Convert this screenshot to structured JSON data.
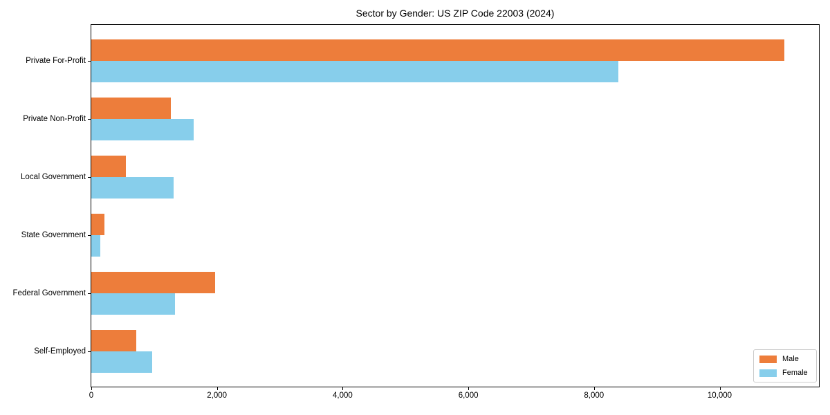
{
  "title": "Sector by Gender: US ZIP Code 22003 (2024)",
  "chart_data": {
    "type": "bar",
    "orientation": "horizontal",
    "title": "Sector by Gender: US ZIP Code 22003 (2024)",
    "xlabel": "",
    "ylabel": "",
    "categories": [
      "Private For-Profit",
      "Private Non-Profit",
      "Local Government",
      "State Government",
      "Federal Government",
      "Self-Employed"
    ],
    "series": [
      {
        "name": "Male",
        "color": "#ED7D3B",
        "values": [
          11030,
          1260,
          550,
          210,
          1970,
          715
        ]
      },
      {
        "name": "Female",
        "color": "#87CEEB",
        "values": [
          8390,
          1630,
          1310,
          140,
          1330,
          970
        ]
      }
    ],
    "xlim": [
      0,
      11580
    ],
    "xticks": [
      0,
      2000,
      4000,
      6000,
      8000,
      10000
    ],
    "xtick_labels": [
      "0",
      "2,000",
      "4,000",
      "6,000",
      "8,000",
      "10,000"
    ],
    "grid": false,
    "legend_position": "lower right"
  },
  "colors": {
    "male": "#ED7D3B",
    "female": "#87CEEB",
    "axis": "#000000",
    "background": "#ffffff",
    "legend_border": "#cccccc"
  },
  "legend": {
    "items": [
      {
        "label": "Male",
        "color": "#ED7D3B"
      },
      {
        "label": "Female",
        "color": "#87CEEB"
      }
    ]
  }
}
